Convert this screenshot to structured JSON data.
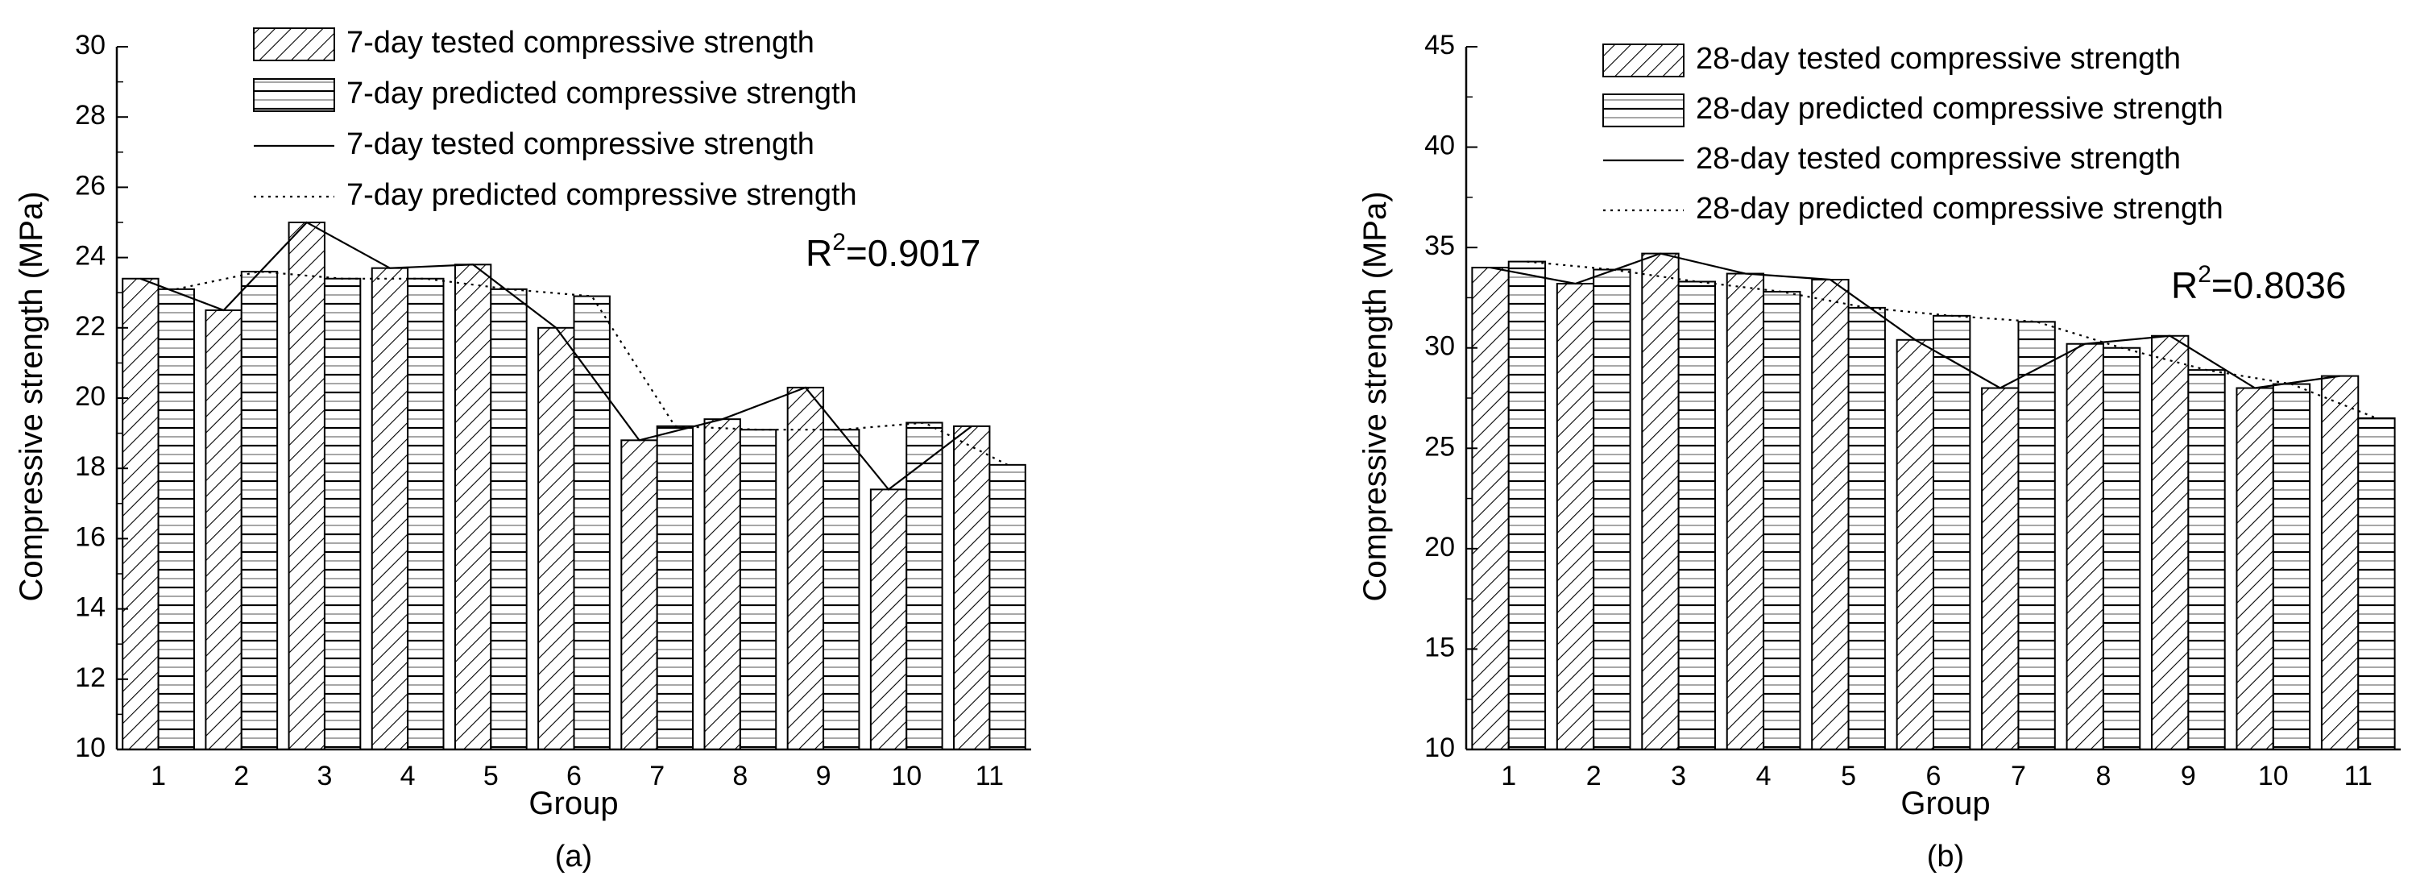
{
  "chart_data": [
    {
      "type": "bar",
      "panel_label": "(a)",
      "categories": [
        "1",
        "2",
        "3",
        "4",
        "5",
        "6",
        "7",
        "8",
        "9",
        "10",
        "11"
      ],
      "xlabel": "Group",
      "ylabel": "Compressive strength (MPa)",
      "ylim": [
        10,
        30
      ],
      "yticks": [
        10,
        12,
        14,
        16,
        18,
        20,
        22,
        24,
        26,
        28,
        30
      ],
      "r2_label": "R",
      "r2_sup": "2",
      "r2_value": "=0.9017",
      "legend_position": "top-right",
      "series": [
        {
          "name": "7-day tested compressive strength",
          "kind": "bar",
          "pattern": "diagonal",
          "values": [
            23.4,
            22.5,
            25.0,
            23.7,
            23.8,
            22.0,
            18.8,
            19.4,
            20.3,
            17.4,
            19.2
          ]
        },
        {
          "name": "7-day predicted compressive strength",
          "kind": "bar",
          "pattern": "horizontal",
          "values": [
            23.1,
            23.6,
            23.4,
            23.4,
            23.1,
            22.9,
            19.2,
            19.1,
            19.1,
            19.3,
            18.1
          ]
        },
        {
          "name": "7-day tested compressive strength",
          "kind": "line",
          "style": "solid",
          "values": [
            23.4,
            22.5,
            25.0,
            23.7,
            23.8,
            22.0,
            18.8,
            19.4,
            20.3,
            17.4,
            19.2
          ]
        },
        {
          "name": "7-day predicted compressive strength",
          "kind": "line",
          "style": "dotted",
          "values": [
            23.1,
            23.6,
            23.4,
            23.4,
            23.1,
            22.9,
            19.2,
            19.1,
            19.1,
            19.3,
            18.1
          ]
        }
      ]
    },
    {
      "type": "bar",
      "panel_label": "(b)",
      "categories": [
        "1",
        "2",
        "3",
        "4",
        "5",
        "6",
        "7",
        "8",
        "9",
        "10",
        "11"
      ],
      "xlabel": "Group",
      "ylabel": "Compressive strength (MPa)",
      "ylim": [
        10,
        45
      ],
      "yticks": [
        10,
        15,
        20,
        25,
        30,
        35,
        40,
        45
      ],
      "r2_label": "R",
      "r2_sup": "2",
      "r2_value": "=0.8036",
      "legend_position": "top-right",
      "series": [
        {
          "name": "28-day tested compressive strength",
          "kind": "bar",
          "pattern": "diagonal",
          "values": [
            34.0,
            33.2,
            34.7,
            33.7,
            33.4,
            30.4,
            28.0,
            30.2,
            30.6,
            28.0,
            28.6
          ]
        },
        {
          "name": "28-day predicted compressive strength",
          "kind": "bar",
          "pattern": "horizontal",
          "values": [
            34.3,
            33.9,
            33.3,
            32.8,
            32.0,
            31.6,
            31.3,
            30.0,
            28.9,
            28.2,
            26.5
          ]
        },
        {
          "name": "28-day tested compressive strength",
          "kind": "line",
          "style": "solid",
          "values": [
            34.0,
            33.2,
            34.7,
            33.7,
            33.4,
            30.4,
            28.0,
            30.2,
            30.6,
            28.0,
            28.6
          ]
        },
        {
          "name": "28-day predicted compressive strength",
          "kind": "line",
          "style": "dotted",
          "values": [
            34.3,
            33.9,
            33.3,
            32.8,
            32.0,
            31.6,
            31.3,
            30.0,
            28.9,
            28.2,
            26.5
          ]
        }
      ]
    }
  ]
}
